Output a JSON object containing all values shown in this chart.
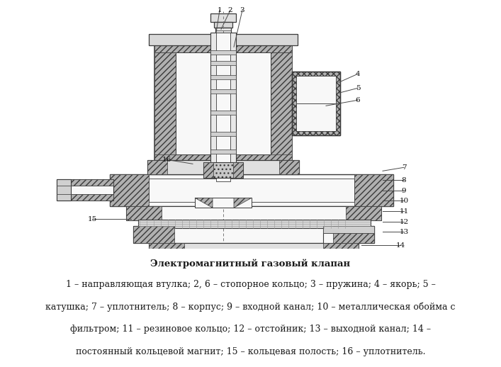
{
  "title": "Электромагнитный газовый клапан",
  "caption_lines": [
    "1 – направляющая втулка; 2, 6 – стопорное кольцо; 3 – пружина; 4 – якорь; 5 –",
    "катушка; 7 – уплотнитель; 8 – корпус; 9 – входной канал; 10 – металлическая обойма с",
    "фильтром; 11 – резиновое кольцо; 12 – отстойник; 13 – выходной канал; 14 –",
    "постоянный кольцевой магнит; 15 – кольцевая полость; 16 – уплотнитель."
  ],
  "bg_color": "#ffffff",
  "text_color": "#1a1a1a",
  "title_fontsize": 9.5,
  "caption_fontsize": 9.0
}
